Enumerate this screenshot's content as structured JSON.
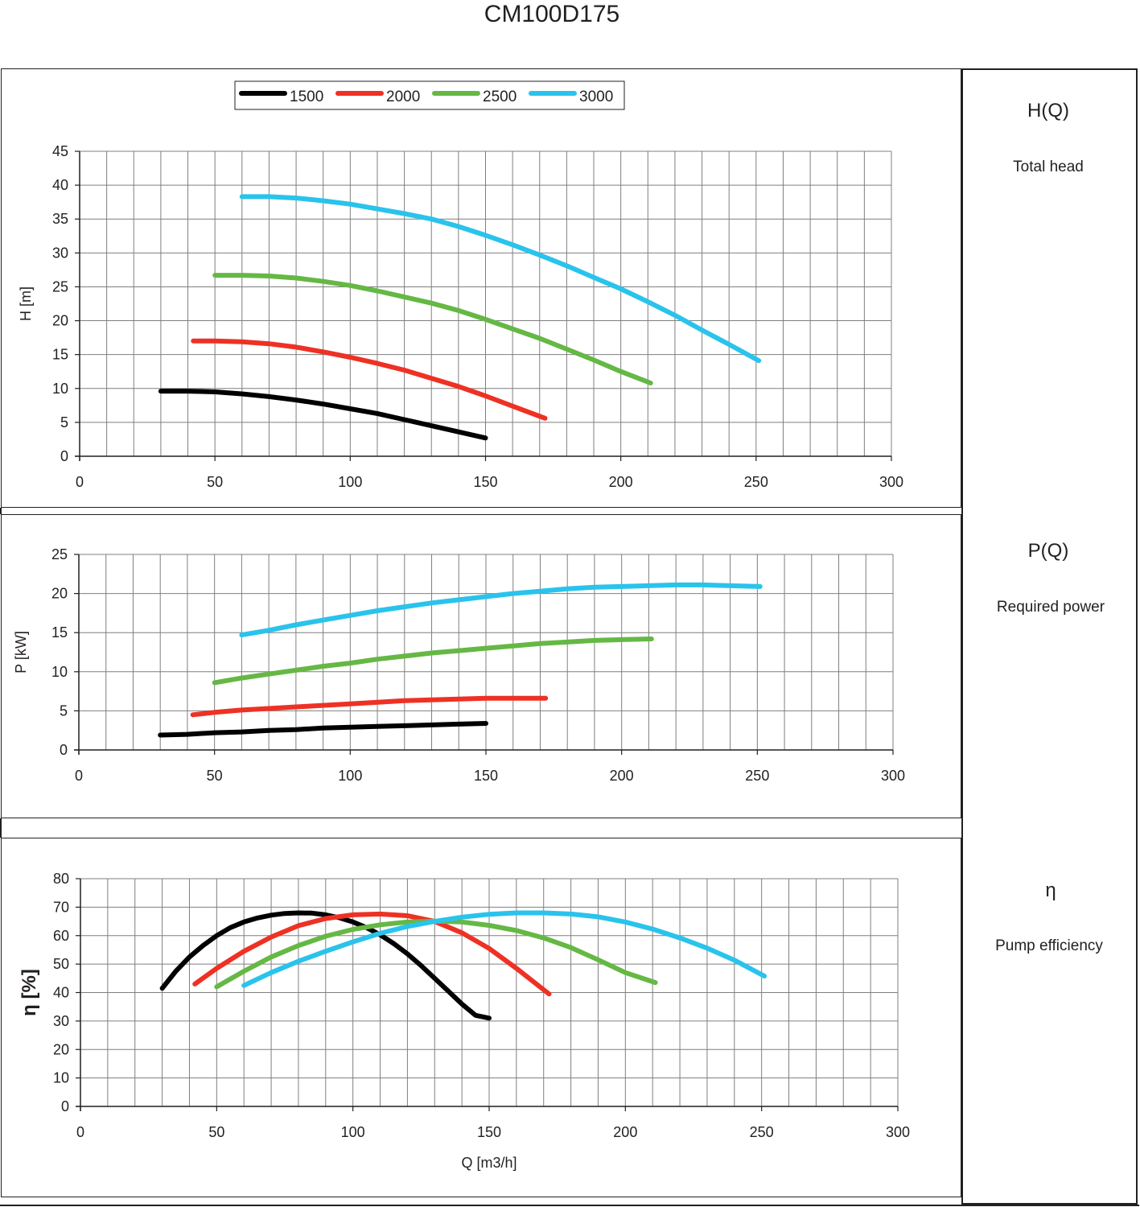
{
  "title": "CM100D175",
  "colors": {
    "1500": "#000000",
    "2000": "#ee3124",
    "2500": "#65b844",
    "3000": "#29c3ec",
    "grid": "#7f7f7f",
    "axis": "#231f20"
  },
  "legend": [
    {
      "label": "1500",
      "color": "#000000"
    },
    {
      "label": "2000",
      "color": "#ee3124"
    },
    {
      "label": "2500",
      "color": "#65b844"
    },
    {
      "label": "3000",
      "color": "#29c3ec"
    }
  ],
  "side_labels": [
    {
      "title": "H(Q)",
      "subtitle": "Total head"
    },
    {
      "title": "P(Q)",
      "subtitle": "Required power"
    },
    {
      "title": "η",
      "subtitle": "Pump efficiency"
    }
  ],
  "chart_data": [
    {
      "type": "line",
      "title": "",
      "xlabel": "",
      "ylabel": "H [m]",
      "xlim": [
        0,
        300
      ],
      "ylim": [
        0,
        45
      ],
      "xticks": [
        0,
        50,
        100,
        150,
        200,
        250,
        300
      ],
      "yticks": [
        0,
        5,
        10,
        15,
        20,
        25,
        30,
        35,
        40,
        45
      ],
      "grid": true,
      "legend": "top-center",
      "series": [
        {
          "name": "1500",
          "color": "#000000",
          "x": [
            30,
            40,
            50,
            60,
            70,
            80,
            90,
            100,
            110,
            120,
            130,
            140,
            150
          ],
          "y": [
            9.6,
            9.6,
            9.5,
            9.2,
            8.8,
            8.3,
            7.7,
            7.0,
            6.3,
            5.4,
            4.5,
            3.6,
            2.7
          ]
        },
        {
          "name": "2000",
          "color": "#ee3124",
          "x": [
            42,
            50,
            60,
            70,
            80,
            90,
            100,
            110,
            120,
            130,
            140,
            150,
            160,
            172
          ],
          "y": [
            17.0,
            17.0,
            16.9,
            16.6,
            16.1,
            15.4,
            14.6,
            13.7,
            12.7,
            11.5,
            10.3,
            8.9,
            7.4,
            5.6
          ]
        },
        {
          "name": "2500",
          "color": "#65b844",
          "x": [
            50,
            60,
            70,
            80,
            90,
            100,
            110,
            120,
            130,
            140,
            150,
            160,
            170,
            180,
            190,
            200,
            211
          ],
          "y": [
            26.7,
            26.7,
            26.6,
            26.3,
            25.8,
            25.2,
            24.4,
            23.5,
            22.6,
            21.5,
            20.2,
            18.8,
            17.4,
            15.8,
            14.2,
            12.5,
            10.8
          ]
        },
        {
          "name": "3000",
          "color": "#29c3ec",
          "x": [
            60,
            70,
            80,
            90,
            100,
            110,
            120,
            130,
            140,
            150,
            160,
            170,
            180,
            190,
            200,
            210,
            220,
            230,
            240,
            251
          ],
          "y": [
            38.3,
            38.3,
            38.1,
            37.7,
            37.2,
            36.5,
            35.8,
            35.0,
            33.9,
            32.6,
            31.2,
            29.7,
            28.1,
            26.4,
            24.7,
            22.8,
            20.8,
            18.6,
            16.5,
            14.1
          ]
        }
      ]
    },
    {
      "type": "line",
      "title": "",
      "xlabel": "",
      "ylabel": "P [kW]",
      "xlim": [
        0,
        300
      ],
      "ylim": [
        0,
        25
      ],
      "xticks": [
        0,
        50,
        100,
        150,
        200,
        250,
        300
      ],
      "yticks": [
        0,
        5,
        10,
        15,
        20,
        25
      ],
      "grid": true,
      "series": [
        {
          "name": "1500",
          "color": "#000000",
          "x": [
            30,
            40,
            50,
            60,
            70,
            80,
            90,
            100,
            110,
            120,
            130,
            140,
            150
          ],
          "y": [
            1.9,
            2.0,
            2.2,
            2.3,
            2.5,
            2.6,
            2.8,
            2.9,
            3.0,
            3.1,
            3.2,
            3.3,
            3.4
          ]
        },
        {
          "name": "2000",
          "color": "#ee3124",
          "x": [
            42,
            50,
            60,
            70,
            80,
            90,
            100,
            110,
            120,
            130,
            140,
            150,
            160,
            172
          ],
          "y": [
            4.5,
            4.8,
            5.1,
            5.3,
            5.5,
            5.7,
            5.9,
            6.1,
            6.3,
            6.4,
            6.5,
            6.6,
            6.6,
            6.6
          ]
        },
        {
          "name": "2500",
          "color": "#65b844",
          "x": [
            50,
            60,
            70,
            80,
            90,
            100,
            110,
            120,
            130,
            140,
            150,
            160,
            170,
            180,
            190,
            200,
            211
          ],
          "y": [
            8.6,
            9.2,
            9.7,
            10.2,
            10.7,
            11.1,
            11.6,
            12.0,
            12.4,
            12.7,
            13.0,
            13.3,
            13.6,
            13.8,
            14.0,
            14.1,
            14.2
          ]
        },
        {
          "name": "3000",
          "color": "#29c3ec",
          "x": [
            60,
            70,
            80,
            90,
            100,
            110,
            120,
            130,
            140,
            150,
            160,
            170,
            180,
            190,
            200,
            210,
            220,
            230,
            240,
            251
          ],
          "y": [
            14.7,
            15.3,
            16.0,
            16.6,
            17.2,
            17.8,
            18.3,
            18.8,
            19.2,
            19.6,
            20.0,
            20.3,
            20.6,
            20.8,
            20.9,
            21.0,
            21.1,
            21.1,
            21.0,
            20.9
          ]
        }
      ]
    },
    {
      "type": "line",
      "title": "",
      "xlabel": "Q [m3/h]",
      "ylabel": "η [%]",
      "xlim": [
        0,
        300
      ],
      "ylim": [
        0,
        80
      ],
      "xticks": [
        0,
        50,
        100,
        150,
        200,
        250,
        300
      ],
      "yticks": [
        0,
        10,
        20,
        30,
        40,
        50,
        60,
        70,
        80
      ],
      "grid": true,
      "series": [
        {
          "name": "1500",
          "color": "#000000",
          "x": [
            30,
            35,
            40,
            45,
            50,
            55,
            60,
            65,
            70,
            75,
            80,
            85,
            90,
            95,
            100,
            105,
            110,
            115,
            120,
            125,
            130,
            135,
            140,
            145,
            150
          ],
          "y": [
            41.5,
            47.5,
            52.5,
            56.5,
            60.0,
            62.8,
            64.8,
            66.2,
            67.2,
            67.8,
            68.0,
            67.9,
            67.3,
            66.3,
            64.8,
            62.8,
            60.3,
            57.2,
            53.6,
            49.5,
            45.0,
            40.5,
            36.0,
            32.0,
            31.0
          ]
        },
        {
          "name": "2000",
          "color": "#ee3124",
          "x": [
            42,
            50,
            60,
            70,
            80,
            90,
            100,
            110,
            120,
            130,
            140,
            150,
            160,
            172
          ],
          "y": [
            43.0,
            48.5,
            54.5,
            59.5,
            63.5,
            66.0,
            67.3,
            67.6,
            67.0,
            65.0,
            61.0,
            55.5,
            48.5,
            39.5
          ]
        },
        {
          "name": "2500",
          "color": "#65b844",
          "x": [
            50,
            60,
            70,
            80,
            90,
            100,
            110,
            120,
            130,
            140,
            150,
            160,
            170,
            180,
            190,
            200,
            211
          ],
          "y": [
            42.0,
            47.5,
            52.5,
            56.5,
            59.8,
            62.2,
            63.8,
            64.8,
            65.1,
            64.8,
            63.6,
            61.8,
            59.2,
            55.8,
            51.5,
            47.0,
            43.5
          ]
        },
        {
          "name": "3000",
          "color": "#29c3ec",
          "x": [
            60,
            70,
            80,
            90,
            100,
            110,
            120,
            130,
            140,
            150,
            160,
            170,
            180,
            190,
            200,
            210,
            220,
            230,
            240,
            251
          ],
          "y": [
            42.5,
            47.0,
            51.0,
            54.5,
            57.8,
            60.8,
            63.2,
            65.0,
            66.5,
            67.5,
            68.0,
            68.0,
            67.6,
            66.6,
            64.8,
            62.3,
            59.2,
            55.6,
            51.4,
            45.8
          ]
        }
      ]
    }
  ]
}
